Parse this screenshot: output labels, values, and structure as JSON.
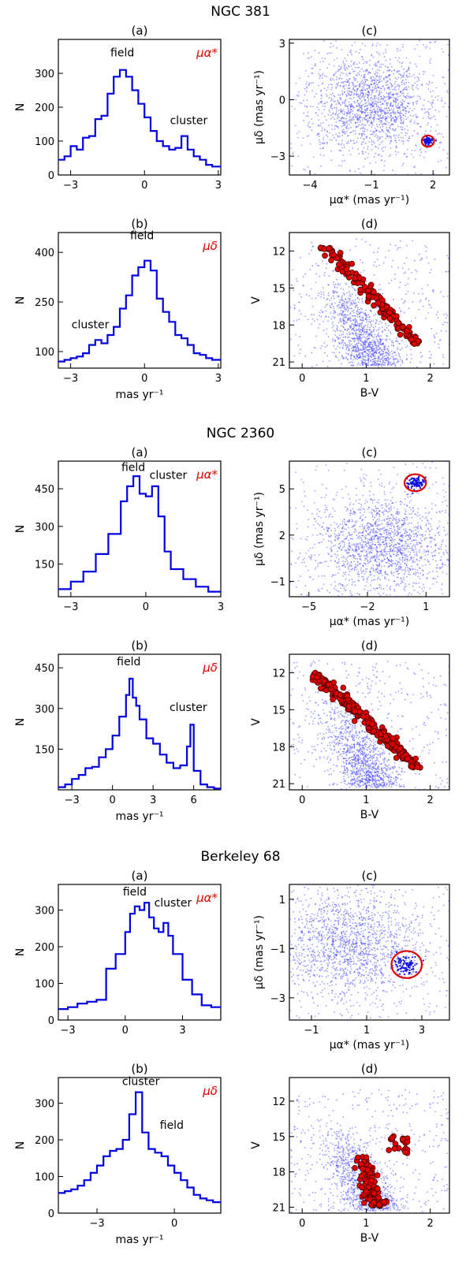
{
  "figure": {
    "clusters": [
      {
        "name": "NGC 381",
        "pm_ra_hist": {
          "type": "histogram",
          "panel_label": "(a)",
          "symbol": "μα*",
          "ylabel": "N",
          "xlabel": "",
          "xlim": [
            -3.5,
            3.1
          ],
          "ylim": [
            0,
            400
          ],
          "xticks": [
            -3,
            0,
            3
          ],
          "yticks": [
            0,
            100,
            200,
            300
          ],
          "edges": [
            -3.5,
            -3.25,
            -3.0,
            -2.75,
            -2.5,
            -2.25,
            -2.0,
            -1.75,
            -1.5,
            -1.25,
            -1.0,
            -0.75,
            -0.5,
            -0.25,
            0.0,
            0.25,
            0.5,
            0.75,
            1.0,
            1.25,
            1.5,
            1.75,
            2.0,
            2.25,
            2.5,
            2.75,
            3.1
          ],
          "counts": [
            45,
            55,
            85,
            75,
            110,
            115,
            165,
            175,
            240,
            290,
            310,
            290,
            250,
            210,
            170,
            130,
            100,
            85,
            75,
            80,
            115,
            75,
            55,
            45,
            30,
            25
          ],
          "annotations": [
            {
              "text": "field",
              "x": -0.9,
              "y": 350
            },
            {
              "text": "cluster",
              "x": 1.8,
              "y": 150
            }
          ]
        },
        "pm_dec_hist": {
          "type": "histogram",
          "panel_label": "(b)",
          "symbol": "μδ",
          "ylabel": "N",
          "xlabel": "mas yr⁻¹",
          "xlim": [
            -3.5,
            3.1
          ],
          "ylim": [
            50,
            460
          ],
          "xticks": [
            -3,
            0,
            3
          ],
          "yticks": [
            100,
            250,
            400
          ],
          "edges": [
            -3.5,
            -3.25,
            -3.0,
            -2.75,
            -2.5,
            -2.25,
            -2.0,
            -1.75,
            -1.5,
            -1.25,
            -1.0,
            -0.75,
            -0.5,
            -0.25,
            0.0,
            0.25,
            0.5,
            0.75,
            1.0,
            1.25,
            1.5,
            1.75,
            2.0,
            2.25,
            2.5,
            2.75,
            3.1
          ],
          "counts": [
            70,
            75,
            80,
            85,
            95,
            120,
            135,
            125,
            150,
            175,
            230,
            270,
            330,
            355,
            375,
            345,
            260,
            220,
            190,
            150,
            140,
            120,
            95,
            90,
            80,
            75
          ],
          "annotations": [
            {
              "text": "field",
              "x": -0.1,
              "y": 440
            },
            {
              "text": "cluster",
              "x": -2.2,
              "y": 170
            }
          ]
        },
        "vpd": {
          "type": "scatter",
          "panel_label": "(c)",
          "xlabel": "μα* (mas yr⁻¹)",
          "ylabel": "μδ (mas yr⁻¹)",
          "xlim": [
            -5,
            2.8
          ],
          "ylim": [
            -4,
            3.2
          ],
          "xticks": [
            -4,
            -1,
            2
          ],
          "yticks": [
            -3,
            0,
            3
          ],
          "field_center": [
            -1.0,
            -0.2
          ],
          "field_spread": [
            1.5,
            1.3
          ],
          "cluster_center": [
            1.75,
            -2.2
          ],
          "circle_radius": 0.3
        },
        "cmd": {
          "type": "scatter",
          "panel_label": "(d)",
          "xlabel": "B-V",
          "ylabel": "V",
          "xlim": [
            -0.2,
            2.3
          ],
          "ylim": [
            21.5,
            10.5
          ],
          "xticks": [
            0,
            1,
            2
          ],
          "yticks": [
            12,
            15,
            18,
            21
          ],
          "members": {
            "bv": [
              0.35,
              1.8
            ],
            "v": [
              11.5,
              19.6
            ]
          }
        }
      },
      {
        "name": "NGC 2360",
        "pm_ra_hist": {
          "type": "histogram",
          "panel_label": "(a)",
          "symbol": "μα*",
          "ylabel": "N",
          "xlabel": "",
          "xlim": [
            -3.5,
            3
          ],
          "ylim": [
            20,
            560
          ],
          "xticks": [
            -3,
            0,
            3
          ],
          "yticks": [
            150,
            300,
            450
          ],
          "edges": [
            -3.5,
            -3.0,
            -2.5,
            -2.0,
            -1.5,
            -1.0,
            -0.75,
            -0.5,
            -0.25,
            0.0,
            0.25,
            0.5,
            0.75,
            1.0,
            1.5,
            2.0,
            2.5,
            3.0
          ],
          "counts": [
            50,
            80,
            120,
            190,
            270,
            400,
            460,
            500,
            430,
            420,
            460,
            340,
            200,
            130,
            90,
            60,
            40
          ],
          "annotations": [
            {
              "text": "field",
              "x": -0.5,
              "y": 520
            },
            {
              "text": "cluster",
              "x": 0.9,
              "y": 490
            }
          ]
        },
        "pm_dec_hist": {
          "type": "histogram",
          "panel_label": "(b)",
          "symbol": "μδ",
          "ylabel": "N",
          "xlabel": "mas yr⁻¹",
          "xlim": [
            -4,
            8
          ],
          "ylim": [
            0,
            500
          ],
          "xticks": [
            -3,
            0,
            3,
            6
          ],
          "yticks": [
            150,
            300,
            450
          ],
          "edges": [
            -4,
            -3.5,
            -3,
            -2.5,
            -2,
            -1.5,
            -1,
            -0.5,
            0,
            0.5,
            1,
            1.25,
            1.5,
            1.75,
            2,
            2.5,
            3,
            3.5,
            4,
            4.5,
            5,
            5.5,
            5.75,
            6,
            6.5,
            7,
            7.5,
            8
          ],
          "counts": [
            10,
            20,
            40,
            55,
            80,
            85,
            120,
            150,
            200,
            270,
            350,
            410,
            340,
            310,
            260,
            190,
            170,
            130,
            100,
            80,
            90,
            160,
            240,
            70,
            20,
            10,
            5
          ],
          "annotations": [
            {
              "text": "field",
              "x": 1.2,
              "y": 460
            },
            {
              "text": "cluster",
              "x": 5.6,
              "y": 290
            }
          ]
        },
        "vpd": {
          "type": "scatter",
          "panel_label": "(c)",
          "xlabel": "μα* (mas yr⁻¹)",
          "ylabel": "μδ (mas yr⁻¹)",
          "xlim": [
            -6,
            2.2
          ],
          "ylim": [
            -2,
            6.8
          ],
          "xticks": [
            -5,
            -2,
            1
          ],
          "yticks": [
            -1,
            2,
            5
          ],
          "field_center": [
            -1.2,
            1.3
          ],
          "field_spread": [
            1.6,
            1.6
          ],
          "cluster_center": [
            0.45,
            5.4
          ],
          "circle_radius": 0.55
        },
        "cmd": {
          "type": "scatter",
          "panel_label": "(d)",
          "xlabel": "B-V",
          "ylabel": "V",
          "xlim": [
            -0.2,
            2.3
          ],
          "ylim": [
            21.5,
            10.5
          ],
          "xticks": [
            0,
            1,
            2
          ],
          "yticks": [
            12,
            15,
            18,
            21
          ],
          "members": {
            "bv": [
              0.2,
              1.8
            ],
            "v": [
              12.0,
              19.7
            ]
          }
        }
      },
      {
        "name": "Berkeley 68",
        "pm_ra_hist": {
          "type": "histogram",
          "panel_label": "(a)",
          "symbol": "μα*",
          "ylabel": "N",
          "xlabel": "",
          "xlim": [
            -3.5,
            5
          ],
          "ylim": [
            0,
            370
          ],
          "xticks": [
            -3,
            0,
            3
          ],
          "yticks": [
            0,
            100,
            200,
            300
          ],
          "edges": [
            -3.5,
            -3,
            -2.5,
            -2,
            -1.5,
            -1,
            -0.5,
            0,
            0.25,
            0.5,
            0.75,
            1,
            1.25,
            1.5,
            1.75,
            2,
            2.25,
            2.5,
            3,
            3.5,
            4,
            4.5,
            5
          ],
          "counts": [
            30,
            35,
            45,
            50,
            55,
            140,
            180,
            240,
            290,
            310,
            300,
            320,
            280,
            250,
            240,
            265,
            230,
            180,
            110,
            70,
            40,
            35
          ],
          "annotations": [
            {
              "text": "field",
              "x": 0.5,
              "y": 340
            },
            {
              "text": "cluster",
              "x": 2.5,
              "y": 310
            }
          ]
        },
        "pm_dec_hist": {
          "type": "histogram",
          "panel_label": "(b)",
          "symbol": "μδ",
          "ylabel": "N",
          "xlabel": "mas yr⁻¹",
          "xlim": [
            -4.5,
            1.8
          ],
          "ylim": [
            0,
            370
          ],
          "xticks": [
            -3,
            0
          ],
          "yticks": [
            0,
            100,
            200,
            300
          ],
          "edges": [
            -4.5,
            -4.25,
            -4,
            -3.75,
            -3.5,
            -3.25,
            -3,
            -2.75,
            -2.5,
            -2.25,
            -2,
            -1.75,
            -1.5,
            -1.25,
            -1,
            -0.75,
            -0.5,
            -0.25,
            0,
            0.25,
            0.5,
            0.75,
            1,
            1.25,
            1.5,
            1.8
          ],
          "counts": [
            55,
            60,
            65,
            75,
            90,
            110,
            130,
            155,
            170,
            175,
            200,
            270,
            330,
            220,
            175,
            165,
            155,
            130,
            110,
            90,
            70,
            50,
            40,
            35,
            30
          ],
          "annotations": [
            {
              "text": "cluster",
              "x": -1.3,
              "y": 350
            },
            {
              "text": "field",
              "x": -0.1,
              "y": 230
            }
          ]
        },
        "vpd": {
          "type": "scatter",
          "panel_label": "(c)",
          "xlabel": "μα* (mas yr⁻¹)",
          "ylabel": "μδ (mas yr⁻¹)",
          "xlim": [
            -1.8,
            4.0
          ],
          "ylim": [
            -3.9,
            1.6
          ],
          "xticks": [
            -1,
            1,
            3
          ],
          "yticks": [
            -3,
            -1,
            1
          ],
          "field_center": [
            0.3,
            -0.8
          ],
          "field_spread": [
            1.3,
            1.1
          ],
          "cluster_center": [
            2.45,
            -1.65
          ],
          "circle_radius": 0.55
        },
        "cmd": {
          "type": "scatter",
          "panel_label": "(d)",
          "xlabel": "B-V",
          "ylabel": "V",
          "xlim": [
            -0.2,
            2.3
          ],
          "ylim": [
            21.5,
            10.0
          ],
          "xticks": [
            0,
            1,
            2
          ],
          "yticks": [
            12,
            15,
            18,
            21
          ],
          "members": {
            "bv": [
              0.5,
              1.7
            ],
            "v": [
              14.5,
              21.0
            ]
          }
        }
      }
    ]
  },
  "colors": {
    "hist_line": "#0000e0",
    "scatter_field": "#4a4aff",
    "member_fill": "#e00000",
    "member_edge": "#4a0000",
    "circle": "#e00000"
  }
}
